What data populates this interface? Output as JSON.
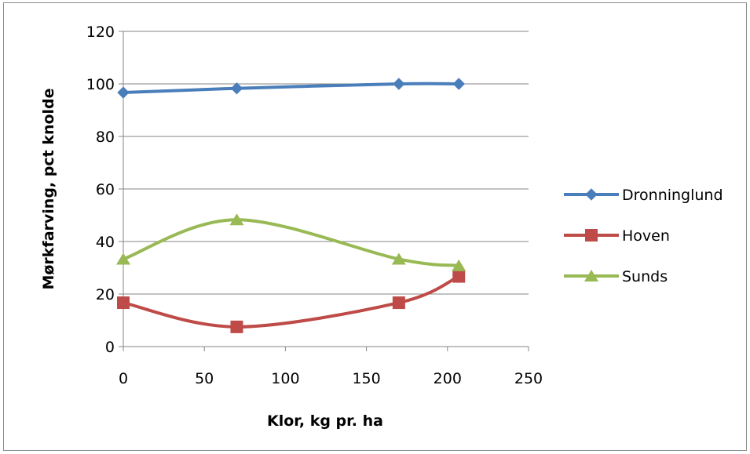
{
  "chart_data": {
    "type": "line",
    "title": "",
    "xlabel": "Klor, kg pr. ha",
    "ylabel": "Mørkfarving, pct knolde",
    "xlim": [
      0,
      250
    ],
    "ylim": [
      0,
      120
    ],
    "xticks": [
      0,
      50,
      100,
      150,
      200,
      250
    ],
    "yticks": [
      0,
      20,
      40,
      60,
      80,
      100,
      120
    ],
    "grid": "horizontal",
    "legend_position": "right",
    "smooth": true,
    "series": [
      {
        "name": "Dronninglund",
        "color": "#4a7ebb",
        "marker": "diamond",
        "x": [
          0,
          70,
          170,
          207
        ],
        "y": [
          96.7,
          98.3,
          100,
          100
        ]
      },
      {
        "name": "Hoven",
        "color": "#be4b48",
        "marker": "square",
        "x": [
          0,
          70,
          170,
          207
        ],
        "y": [
          16.7,
          7.5,
          16.7,
          26.7
        ]
      },
      {
        "name": "Sunds",
        "color": "#98b954",
        "marker": "triangle",
        "x": [
          0,
          70,
          170,
          207
        ],
        "y": [
          33.3,
          48.3,
          33.3,
          30.8
        ]
      }
    ]
  }
}
